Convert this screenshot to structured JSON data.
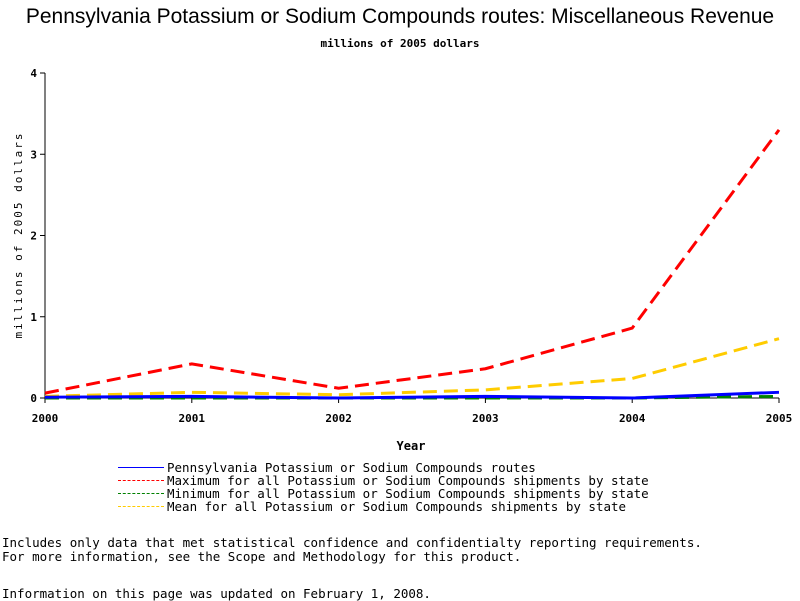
{
  "chart_data": {
    "type": "line",
    "title": "Pennsylvania Potassium or Sodium Compounds routes: Miscellaneous Revenue",
    "subtitle": "millions of 2005 dollars",
    "xlabel": "Year",
    "ylabel": "millions of 2005 dollars",
    "x": [
      "2000",
      "2001",
      "2002",
      "2003",
      "2004",
      "2005"
    ],
    "xlim": [
      2000,
      2005
    ],
    "ylim": [
      0,
      4
    ],
    "yticks": [
      "0",
      "1",
      "2",
      "3",
      "4"
    ],
    "grid": false,
    "legend_position": "bottom",
    "series": [
      {
        "name": "Pennsylvania Potassium or Sodium Compounds routes",
        "values": [
          0.01,
          0.02,
          0.0,
          0.02,
          0.0,
          0.07
        ],
        "color": "#0000ff",
        "dash": "solid"
      },
      {
        "name": "Maximum for all Potassium or Sodium Compounds shipments by state",
        "values": [
          0.06,
          0.42,
          0.12,
          0.36,
          0.86,
          3.3
        ],
        "color": "#ff0000",
        "dash": "dashed"
      },
      {
        "name": "Minimum for all Potassium or Sodium Compounds shipments by state",
        "values": [
          0.0,
          0.0,
          0.0,
          0.0,
          0.0,
          0.02
        ],
        "color": "#008000",
        "dash": "dashed"
      },
      {
        "name": "Mean for all Potassium or Sodium Compounds shipments by state",
        "values": [
          0.02,
          0.07,
          0.04,
          0.1,
          0.24,
          0.73
        ],
        "color": "#ffcc00",
        "dash": "dashed"
      }
    ]
  },
  "footnotes": [
    "Includes only data that met statistical confidence and confidentialty reporting requirements.",
    "For more information, see the Scope and Methodology for this product."
  ],
  "updated": "Information on this page was updated on February 1, 2008."
}
